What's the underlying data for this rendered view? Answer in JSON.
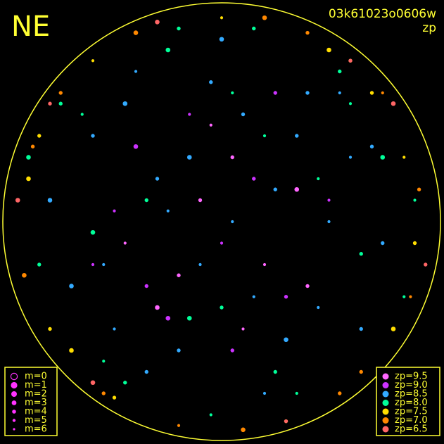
{
  "chart_data": {
    "type": "scatter",
    "title": "NE",
    "subtitle": "03k61023o0606w",
    "annotation": "zp",
    "xlim": [
      -1,
      1
    ],
    "ylim": [
      -1,
      1
    ],
    "size_legend": [
      "m=0",
      "m=1",
      "m=2",
      "m=3",
      "m=4",
      "m=5",
      "m=6"
    ],
    "series": [
      {
        "name": "zp=9.5",
        "color": "#ff66ff",
        "x": [
          -0.3,
          -0.1,
          0.2,
          0.05,
          -0.45,
          0.35,
          -0.2,
          0.1,
          0.4,
          -0.05
        ],
        "y": [
          -0.4,
          0.1,
          -0.2,
          0.3,
          -0.1,
          0.15,
          -0.25,
          -0.5,
          -0.3,
          0.45
        ],
        "m": [
          3,
          4,
          5,
          4,
          5,
          3,
          4,
          5,
          4,
          5
        ]
      },
      {
        "name": "zp=9.0",
        "color": "#cc33ff",
        "x": [
          -0.35,
          -0.25,
          0.0,
          0.15,
          -0.5,
          0.3,
          -0.15,
          0.25,
          -0.4,
          0.5,
          0.05,
          -0.6
        ],
        "y": [
          -0.3,
          -0.45,
          -0.1,
          0.2,
          0.05,
          -0.35,
          0.5,
          0.6,
          0.35,
          0.1,
          -0.6,
          -0.2
        ],
        "m": [
          4,
          3,
          5,
          4,
          5,
          4,
          5,
          4,
          3,
          5,
          4,
          5
        ]
      },
      {
        "name": "zp=8.5",
        "color": "#33aaff",
        "x": [
          -0.8,
          -0.6,
          -0.4,
          -0.2,
          0,
          0.2,
          0.4,
          0.6,
          0.75,
          -0.7,
          -0.5,
          -0.3,
          -0.1,
          0.1,
          0.3,
          0.5,
          0.7,
          -0.55,
          -0.35,
          -0.15,
          0.05,
          0.25,
          0.45,
          0.65,
          -0.45,
          -0.25,
          -0.05,
          0.15,
          0.35,
          0.55
        ],
        "y": [
          0.1,
          0.4,
          0.7,
          -0.6,
          0.85,
          -0.8,
          0.6,
          0.3,
          -0.1,
          -0.3,
          -0.5,
          0.2,
          -0.2,
          0.5,
          -0.55,
          0.0,
          0.35,
          -0.2,
          -0.7,
          0.3,
          0.0,
          0.15,
          -0.4,
          -0.5,
          0.55,
          0.05,
          0.65,
          -0.35,
          0.4,
          0.6
        ],
        "m": [
          3,
          4,
          5,
          4,
          3,
          5,
          4,
          5,
          4,
          3,
          5,
          4,
          5,
          4,
          3,
          5,
          4,
          5,
          4,
          3,
          5,
          4,
          5,
          4,
          3,
          5,
          4,
          5,
          4,
          5
        ]
      },
      {
        "name": "zp=8.0",
        "color": "#00ff99",
        "x": [
          -0.85,
          -0.65,
          -0.45,
          -0.25,
          -0.05,
          0.15,
          0.35,
          0.55,
          0.75,
          0.85,
          -0.75,
          -0.55,
          -0.35,
          -0.15,
          0.05,
          0.25,
          0.45,
          0.65,
          -0.9,
          0.9,
          -0.2,
          0.2,
          0.0,
          -0.6,
          0.6
        ],
        "y": [
          -0.2,
          0.5,
          -0.75,
          0.8,
          -0.9,
          0.9,
          -0.8,
          0.7,
          0.3,
          -0.35,
          0.55,
          -0.65,
          0.1,
          -0.45,
          0.6,
          -0.7,
          0.2,
          -0.15,
          0.3,
          0.1,
          0.9,
          0.4,
          -0.4,
          -0.05,
          0.55
        ],
        "m": [
          4,
          5,
          4,
          3,
          5,
          4,
          5,
          4,
          3,
          5,
          4,
          5,
          4,
          3,
          5,
          4,
          5,
          4,
          3,
          5,
          4,
          5,
          4,
          3,
          5
        ]
      },
      {
        "name": "zp=7.5",
        "color": "#ffdd00",
        "x": [
          -0.9,
          -0.8,
          -0.6,
          0.6,
          0.8,
          0.9,
          -0.3,
          0.3,
          -0.7,
          0.7,
          0.0,
          -0.5,
          0.5,
          -0.85,
          0.85
        ],
        "y": [
          0.2,
          -0.5,
          0.75,
          0.75,
          -0.5,
          -0.1,
          0.93,
          -0.93,
          -0.6,
          0.6,
          0.95,
          -0.82,
          0.8,
          0.4,
          0.3
        ],
        "m": [
          3,
          4,
          5,
          4,
          3,
          4,
          5,
          4,
          3,
          4,
          5,
          4,
          3,
          4,
          5
        ]
      },
      {
        "name": "zp=7.0",
        "color": "#ff8800",
        "x": [
          -0.92,
          -0.75,
          -0.55,
          -0.2,
          0.2,
          0.55,
          0.75,
          0.92,
          0.1,
          -0.88,
          0.88,
          -0.4,
          0.4,
          0.65
        ],
        "y": [
          -0.25,
          0.6,
          -0.8,
          -0.95,
          0.95,
          -0.8,
          0.6,
          0.15,
          -0.97,
          0.35,
          -0.35,
          0.88,
          0.88,
          -0.7
        ],
        "m": [
          3,
          4,
          4,
          5,
          3,
          4,
          5,
          4,
          3,
          4,
          5,
          3,
          4,
          4
        ]
      },
      {
        "name": "zp=6.5",
        "color": "#ff6666",
        "x": [
          -0.95,
          -0.6,
          0.6,
          0.95,
          -0.3,
          0.3,
          -0.8,
          0.8
        ],
        "y": [
          0.1,
          -0.75,
          0.75,
          -0.2,
          0.93,
          -0.93,
          0.55,
          0.55
        ],
        "m": [
          3,
          3,
          4,
          4,
          3,
          4,
          4,
          3
        ]
      }
    ]
  }
}
